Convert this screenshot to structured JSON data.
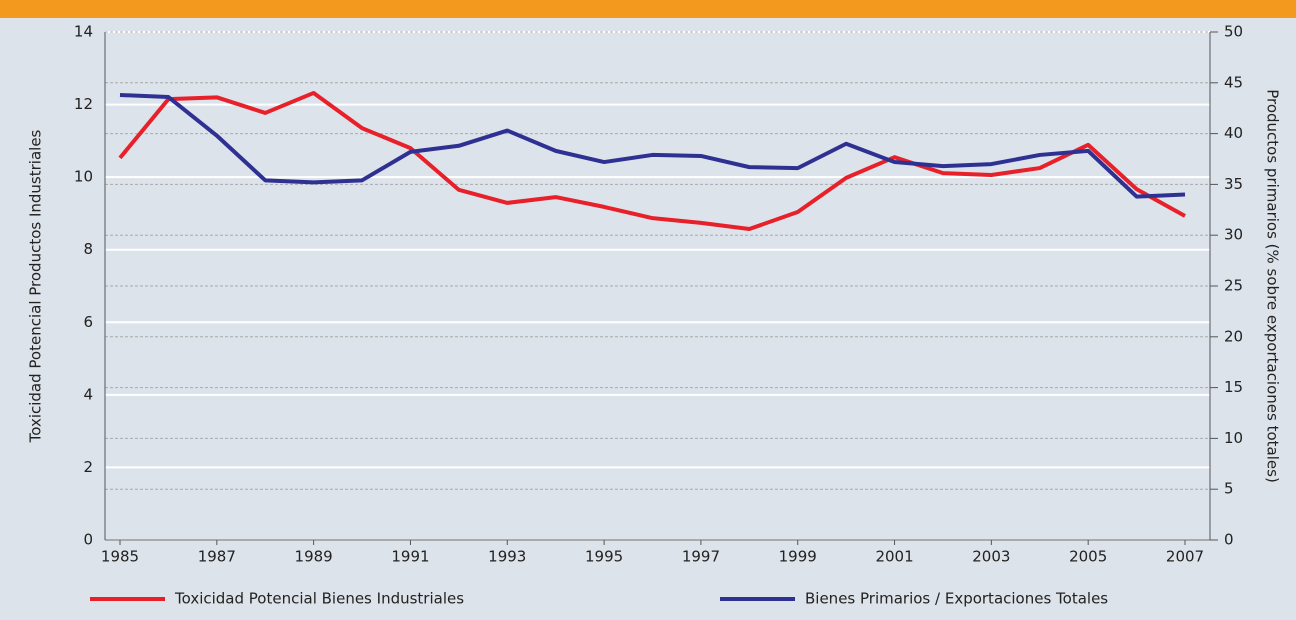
{
  "chart_data": {
    "type": "line",
    "x": [
      1985,
      1986,
      1987,
      1988,
      1989,
      1990,
      1991,
      1992,
      1993,
      1994,
      1995,
      1996,
      1997,
      1998,
      1999,
      2000,
      2001,
      2002,
      2003,
      2004,
      2005,
      2006,
      2007
    ],
    "xlim": [
      1985,
      2007
    ],
    "xticks": [
      1985,
      1987,
      1989,
      1991,
      1993,
      1995,
      1997,
      1999,
      2001,
      2003,
      2005,
      2007
    ],
    "ylabel": "Toxicidad Potencial Productos Industriales",
    "y2label": "Productos primarios (% sobre exportaciones totales)",
    "ylim": [
      0,
      14
    ],
    "yticks": [
      0,
      2,
      4,
      6,
      8,
      10,
      12,
      14
    ],
    "y2lim": [
      0,
      50
    ],
    "y2ticks": [
      0,
      5,
      10,
      15,
      20,
      25,
      30,
      35,
      40,
      45,
      50
    ],
    "grid": true,
    "series": [
      {
        "name": "Toxicidad Potencial Bienes Industriales",
        "color": "#e8202a",
        "values": [
          10.53,
          12.15,
          12.2,
          11.77,
          12.32,
          11.35,
          10.8,
          9.65,
          9.29,
          9.45,
          9.18,
          8.87,
          8.74,
          8.57,
          9.04,
          9.98,
          10.55,
          10.11,
          10.06,
          10.25,
          10.89,
          9.67,
          8.93
        ]
      },
      {
        "name": "Bienes Primarios / Exportaciones Totales",
        "color": "#2e3192",
        "axis": "y2",
        "values": [
          43.8,
          43.6,
          39.8,
          35.4,
          35.2,
          35.4,
          38.2,
          38.8,
          40.3,
          38.3,
          37.2,
          37.9,
          37.8,
          36.7,
          36.6,
          39.0,
          37.2,
          36.8,
          37.0,
          37.9,
          38.3,
          33.8,
          34.0
        ]
      }
    ]
  }
}
